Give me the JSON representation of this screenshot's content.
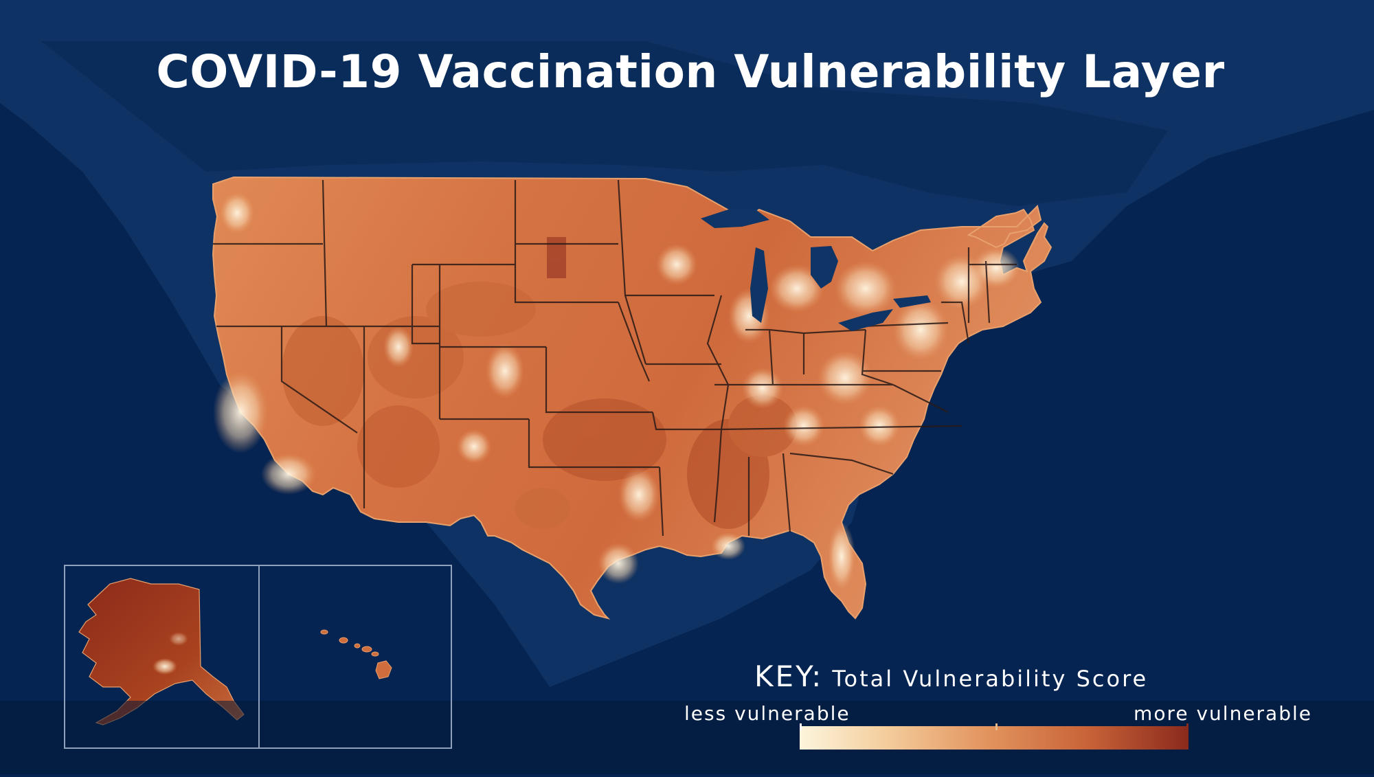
{
  "title": "COVID-19 Vaccination Vulnerability Layer",
  "key": {
    "label": "KEY:",
    "description": "Total Vulnerability Score",
    "low_label": "less vulnerable",
    "high_label": "more vulnerable",
    "colors": [
      "#fdf5dd",
      "#f4cd9d",
      "#e2945e",
      "#c86338",
      "#8a2a1d"
    ]
  },
  "colors": {
    "ocean": "#052452",
    "land_background": "#0f3566",
    "state_border": "#2a1a17",
    "map_fill_main": "#d97a46"
  },
  "insets": [
    "alaska",
    "hawaii"
  ]
}
